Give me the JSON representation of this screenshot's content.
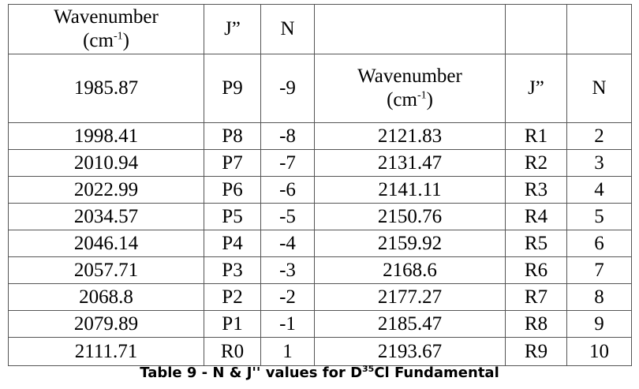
{
  "table": {
    "left_header": {
      "title": "Wavenumber",
      "unit": "(cm",
      "unit_sup": "-1",
      "unit_end": ")",
      "j": "J”",
      "n": "N"
    },
    "right_header": {
      "title": "Wavenumber",
      "unit": "(cm",
      "unit_sup": "-1",
      "unit_end": ")",
      "j": "J”",
      "n": "N"
    },
    "left_rows": [
      [
        "1985.87",
        "P9",
        "-9"
      ],
      [
        "1998.41",
        "P8",
        "-8"
      ],
      [
        "2010.94",
        "P7",
        "-7"
      ],
      [
        "2022.99",
        "P6",
        "-6"
      ],
      [
        "2034.57",
        "P5",
        "-5"
      ],
      [
        "2046.14",
        "P4",
        "-4"
      ],
      [
        "2057.71",
        "P3",
        "-3"
      ],
      [
        "2068.8",
        "P2",
        "-2"
      ],
      [
        "2079.89",
        "P1",
        "-1"
      ],
      [
        "2111.71",
        "R0",
        "1"
      ]
    ],
    "right_rows": [
      [
        "2121.83",
        "R1",
        "2"
      ],
      [
        "2131.47",
        "R2",
        "3"
      ],
      [
        "2141.11",
        "R3",
        "4"
      ],
      [
        "2150.76",
        "R4",
        "5"
      ],
      [
        "2159.92",
        "R5",
        "6"
      ],
      [
        "2168.6",
        "R6",
        "7"
      ],
      [
        "2177.27",
        "R7",
        "8"
      ],
      [
        "2185.47",
        "R8",
        "9"
      ],
      [
        "2193.67",
        "R9",
        "10"
      ]
    ]
  },
  "caption": {
    "text": "Table 9 - N & J'' values for D",
    "sup": "35",
    "text_end": "Cl Fundamental"
  }
}
